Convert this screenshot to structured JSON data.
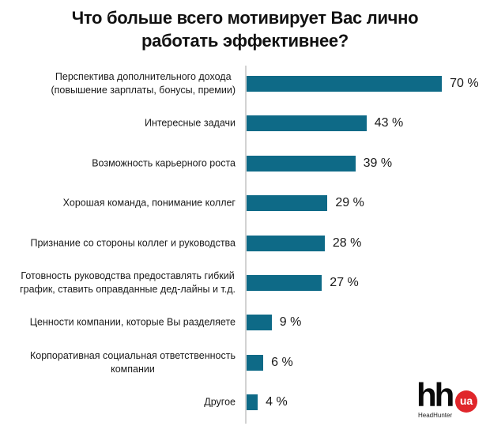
{
  "title": {
    "line1": "Что больше всего мотивирует Вас лично",
    "line2": "работать эффективнее?"
  },
  "colors": {
    "bar": "#0e6a87",
    "axis": "#d3d3d3",
    "logo_badge": "#e0262b"
  },
  "logo": {
    "mark": "hh",
    "badge": "ua",
    "caption": "HeadHunter"
  },
  "chart_data": {
    "type": "bar",
    "orientation": "horizontal",
    "title": "Что больше всего мотивирует Вас лично работать эффективнее?",
    "xlabel": "",
    "ylabel": "",
    "grid": false,
    "legend": null,
    "categories": [
      "Перспектива дополнительного дохода (повышение зарплаты, бонусы, премии)",
      "Интересные задачи",
      "Возможность карьерного роста",
      "Хорошая команда, понимание коллег",
      "Признание со стороны коллег и руководства",
      "Готовность руководства предоставлять гибкий график, ставить оправданные дед-лайны и т.д.",
      "Ценности компании, которые Вы разделяете",
      "Корпоративная социальная ответственность компании",
      "Другое"
    ],
    "values": [
      70,
      43,
      39,
      29,
      28,
      27,
      9,
      6,
      4
    ],
    "value_labels": [
      "70 %",
      "43 %",
      "39 %",
      "29 %",
      "28 %",
      "27 %",
      "9 %",
      "6 %",
      "4 %"
    ],
    "unit": "%"
  },
  "rows": [
    {
      "label_lines": [
        "Перспектива дополнительного дохода",
        "(повышение зарплаты, бонусы, премии)"
      ],
      "value": 70,
      "value_label": "70 %"
    },
    {
      "label_lines": [
        "Интересные задачи"
      ],
      "value": 43,
      "value_label": "43 %"
    },
    {
      "label_lines": [
        "Возможность карьерного роста"
      ],
      "value": 39,
      "value_label": "39 %"
    },
    {
      "label_lines": [
        "Хорошая команда, понимание коллег"
      ],
      "value": 29,
      "value_label": "29 %"
    },
    {
      "label_lines": [
        "Признание со стороны коллег и руководства"
      ],
      "value": 28,
      "value_label": "28 %"
    },
    {
      "label_lines": [
        "Готовность руководства предоставлять гибкий",
        "график, ставить оправданные дед-лайны и т.д."
      ],
      "value": 27,
      "value_label": "27 %"
    },
    {
      "label_lines": [
        "Ценности компании, которые Вы разделяете"
      ],
      "value": 9,
      "value_label": "9 %"
    },
    {
      "label_lines": [
        "Корпоративная социальная ответственность",
        "компании"
      ],
      "value": 6,
      "value_label": "6 %"
    },
    {
      "label_lines": [
        "Другое"
      ],
      "value": 4,
      "value_label": "4 %"
    }
  ]
}
